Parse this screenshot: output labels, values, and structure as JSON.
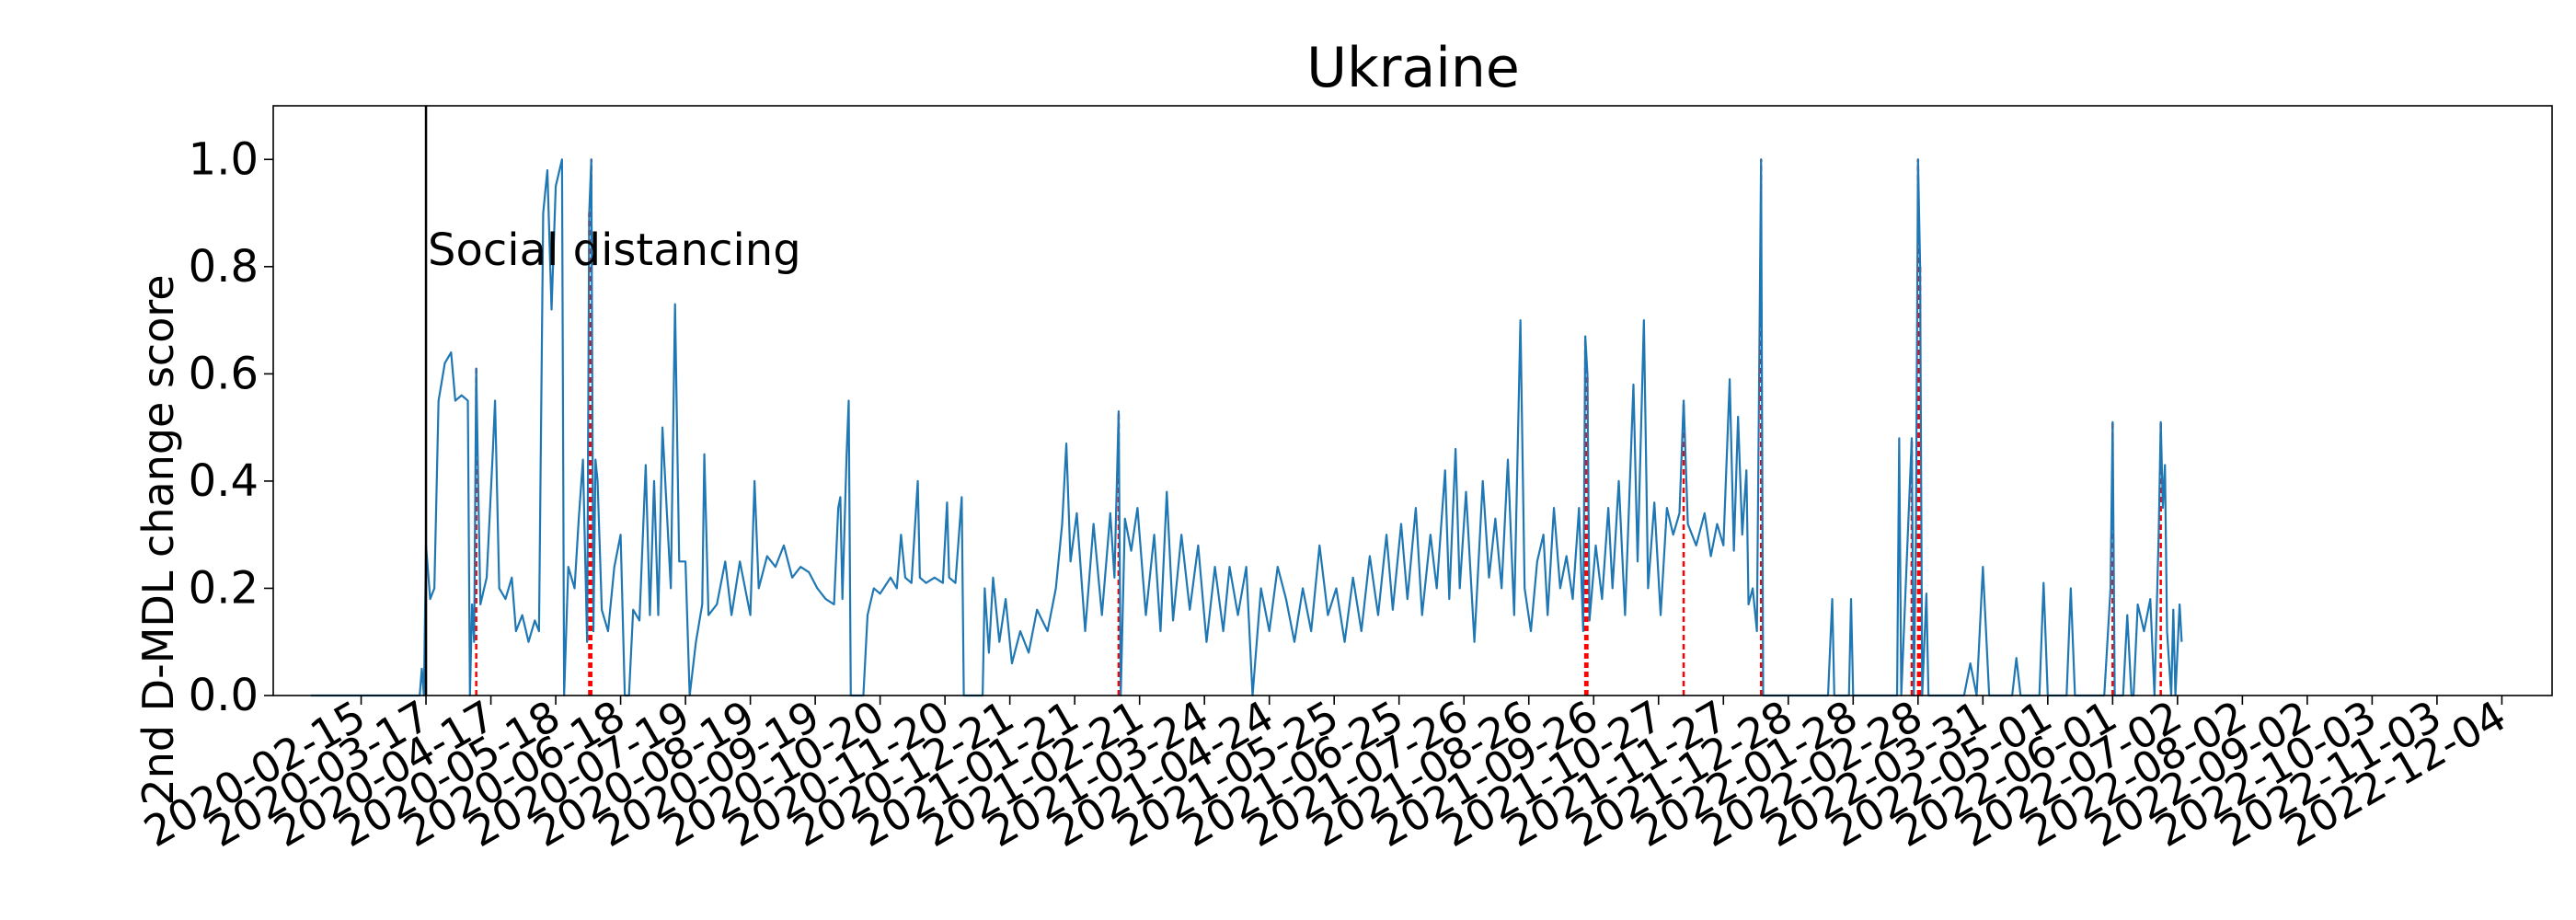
{
  "chart_data": {
    "type": "line",
    "title": "Ukraine",
    "xlabel": "",
    "ylabel": "2nd D-MDL change score",
    "x_start": "2020-01-22",
    "x_end": "2022-11-13",
    "xlim": [
      "2020-01-04",
      "2022-12-28"
    ],
    "ylim": [
      0.0,
      1.1
    ],
    "yticks": [
      0.0,
      0.2,
      0.4,
      0.6,
      0.8,
      1.0
    ],
    "ytick_labels": [
      "0.0",
      "0.2",
      "0.4",
      "0.6",
      "0.8",
      "1.0"
    ],
    "xticks": [
      "2020-02-15",
      "2020-03-17",
      "2020-04-17",
      "2020-05-18",
      "2020-06-18",
      "2020-07-19",
      "2020-08-19",
      "2020-09-19",
      "2020-10-20",
      "2020-11-20",
      "2020-12-21",
      "2021-01-21",
      "2021-02-21",
      "2021-03-24",
      "2021-04-24",
      "2021-05-25",
      "2021-06-25",
      "2021-07-26",
      "2021-08-26",
      "2021-09-26",
      "2021-10-27",
      "2021-11-27",
      "2021-12-28",
      "2022-01-28",
      "2022-02-28",
      "2022-03-31",
      "2022-05-01",
      "2022-06-01",
      "2022-07-02",
      "2022-08-02",
      "2022-09-02",
      "2022-10-03",
      "2022-11-03",
      "2022-12-04"
    ],
    "grid": false,
    "legend": false,
    "series_color": "#1f77b4",
    "alarm_color": "#ff0000",
    "event": {
      "date": "2020-03-17",
      "label": "Social distancing",
      "label_y": 0.8,
      "color": "#000000"
    },
    "alarms": [
      {
        "date": "2020-04-10",
        "value": 0.61
      },
      {
        "date": "2020-06-03",
        "value": 0.9
      },
      {
        "date": "2020-06-04",
        "value": 1.0
      },
      {
        "date": "2021-02-11",
        "value": 0.53
      },
      {
        "date": "2021-09-22",
        "value": 0.67
      },
      {
        "date": "2021-09-23",
        "value": 0.6
      },
      {
        "date": "2021-11-08",
        "value": 0.55
      },
      {
        "date": "2021-12-15",
        "value": 1.0
      },
      {
        "date": "2022-02-25",
        "value": 0.48
      },
      {
        "date": "2022-02-28",
        "value": 1.0
      },
      {
        "date": "2022-03-01",
        "value": 0.8
      },
      {
        "date": "2022-06-01",
        "value": 0.51
      },
      {
        "date": "2022-06-24",
        "value": 0.51
      }
    ],
    "anchors": [
      [
        "2020-01-22",
        0.0
      ],
      [
        "2020-03-14",
        0.0
      ],
      [
        "2020-03-15",
        0.05
      ],
      [
        "2020-03-16",
        0.0
      ],
      [
        "2020-03-17",
        0.28
      ],
      [
        "2020-03-19",
        0.18
      ],
      [
        "2020-03-21",
        0.2
      ],
      [
        "2020-03-23",
        0.55
      ],
      [
        "2020-03-26",
        0.62
      ],
      [
        "2020-03-29",
        0.64
      ],
      [
        "2020-03-31",
        0.55
      ],
      [
        "2020-04-03",
        0.56
      ],
      [
        "2020-04-06",
        0.55
      ],
      [
        "2020-04-07",
        0.0
      ],
      [
        "2020-04-08",
        0.17
      ],
      [
        "2020-04-09",
        0.1
      ],
      [
        "2020-04-10",
        0.61
      ],
      [
        "2020-04-11",
        0.38
      ],
      [
        "2020-04-12",
        0.17
      ],
      [
        "2020-04-15",
        0.22
      ],
      [
        "2020-04-18",
        0.46
      ],
      [
        "2020-04-19",
        0.55
      ],
      [
        "2020-04-21",
        0.2
      ],
      [
        "2020-04-24",
        0.18
      ],
      [
        "2020-04-27",
        0.22
      ],
      [
        "2020-04-29",
        0.12
      ],
      [
        "2020-05-02",
        0.15
      ],
      [
        "2020-05-05",
        0.1
      ],
      [
        "2020-05-08",
        0.14
      ],
      [
        "2020-05-10",
        0.12
      ],
      [
        "2020-05-12",
        0.9
      ],
      [
        "2020-05-14",
        0.98
      ],
      [
        "2020-05-16",
        0.72
      ],
      [
        "2020-05-18",
        0.95
      ],
      [
        "2020-05-21",
        1.0
      ],
      [
        "2020-05-22",
        0.0
      ],
      [
        "2020-05-24",
        0.24
      ],
      [
        "2020-05-27",
        0.2
      ],
      [
        "2020-05-29",
        0.33
      ],
      [
        "2020-05-31",
        0.44
      ],
      [
        "2020-06-02",
        0.1
      ],
      [
        "2020-06-03",
        0.9
      ],
      [
        "2020-06-04",
        1.0
      ],
      [
        "2020-06-05",
        0.12
      ],
      [
        "2020-06-06",
        0.44
      ],
      [
        "2020-06-07",
        0.4
      ],
      [
        "2020-06-09",
        0.16
      ],
      [
        "2020-06-12",
        0.12
      ],
      [
        "2020-06-15",
        0.24
      ],
      [
        "2020-06-18",
        0.3
      ],
      [
        "2020-06-20",
        0.0
      ],
      [
        "2020-06-22",
        0.0
      ],
      [
        "2020-06-24",
        0.16
      ],
      [
        "2020-06-27",
        0.14
      ],
      [
        "2020-06-30",
        0.43
      ],
      [
        "2020-07-02",
        0.15
      ],
      [
        "2020-07-04",
        0.4
      ],
      [
        "2020-07-06",
        0.15
      ],
      [
        "2020-07-08",
        0.5
      ],
      [
        "2020-07-10",
        0.35
      ],
      [
        "2020-07-12",
        0.2
      ],
      [
        "2020-07-14",
        0.73
      ],
      [
        "2020-07-16",
        0.25
      ],
      [
        "2020-07-19",
        0.25
      ],
      [
        "2020-07-21",
        0.0
      ],
      [
        "2020-07-24",
        0.1
      ],
      [
        "2020-07-27",
        0.17
      ],
      [
        "2020-07-28",
        0.45
      ],
      [
        "2020-07-30",
        0.15
      ],
      [
        "2020-08-03",
        0.17
      ],
      [
        "2020-08-07",
        0.25
      ],
      [
        "2020-08-10",
        0.15
      ],
      [
        "2020-08-14",
        0.25
      ],
      [
        "2020-08-19",
        0.15
      ],
      [
        "2020-08-21",
        0.4
      ],
      [
        "2020-08-23",
        0.2
      ],
      [
        "2020-08-27",
        0.26
      ],
      [
        "2020-08-31",
        0.24
      ],
      [
        "2020-09-04",
        0.28
      ],
      [
        "2020-09-08",
        0.22
      ],
      [
        "2020-09-12",
        0.24
      ],
      [
        "2020-09-16",
        0.23
      ],
      [
        "2020-09-20",
        0.2
      ],
      [
        "2020-09-24",
        0.18
      ],
      [
        "2020-09-28",
        0.17
      ],
      [
        "2020-09-30",
        0.35
      ],
      [
        "2020-10-01",
        0.37
      ],
      [
        "2020-10-02",
        0.18
      ],
      [
        "2020-10-04",
        0.45
      ],
      [
        "2020-10-05",
        0.55
      ],
      [
        "2020-10-06",
        0.0
      ],
      [
        "2020-10-12",
        0.0
      ],
      [
        "2020-10-14",
        0.15
      ],
      [
        "2020-10-17",
        0.2
      ],
      [
        "2020-10-20",
        0.19
      ],
      [
        "2020-10-25",
        0.22
      ],
      [
        "2020-10-28",
        0.2
      ],
      [
        "2020-10-30",
        0.3
      ],
      [
        "2020-11-01",
        0.22
      ],
      [
        "2020-11-04",
        0.21
      ],
      [
        "2020-11-07",
        0.4
      ],
      [
        "2020-11-08",
        0.22
      ],
      [
        "2020-11-11",
        0.21
      ],
      [
        "2020-11-15",
        0.22
      ],
      [
        "2020-11-19",
        0.21
      ],
      [
        "2020-11-21",
        0.36
      ],
      [
        "2020-11-22",
        0.22
      ],
      [
        "2020-11-25",
        0.21
      ],
      [
        "2020-11-28",
        0.37
      ],
      [
        "2020-11-29",
        0.0
      ],
      [
        "2020-12-08",
        0.0
      ],
      [
        "2020-12-09",
        0.2
      ],
      [
        "2020-12-11",
        0.08
      ],
      [
        "2020-12-13",
        0.22
      ],
      [
        "2020-12-16",
        0.1
      ],
      [
        "2020-12-19",
        0.18
      ],
      [
        "2020-12-22",
        0.06
      ],
      [
        "2020-12-26",
        0.12
      ],
      [
        "2020-12-30",
        0.08
      ],
      [
        "2021-01-03",
        0.16
      ],
      [
        "2021-01-08",
        0.12
      ],
      [
        "2021-01-12",
        0.2
      ],
      [
        "2021-01-15",
        0.32
      ],
      [
        "2021-01-17",
        0.47
      ],
      [
        "2021-01-19",
        0.25
      ],
      [
        "2021-01-22",
        0.34
      ],
      [
        "2021-01-26",
        0.12
      ],
      [
        "2021-01-30",
        0.32
      ],
      [
        "2021-02-03",
        0.15
      ],
      [
        "2021-02-07",
        0.34
      ],
      [
        "2021-02-09",
        0.22
      ],
      [
        "2021-02-11",
        0.53
      ],
      [
        "2021-02-12",
        0.0
      ],
      [
        "2021-02-14",
        0.33
      ],
      [
        "2021-02-17",
        0.27
      ],
      [
        "2021-02-20",
        0.35
      ],
      [
        "2021-02-24",
        0.15
      ],
      [
        "2021-02-28",
        0.3
      ],
      [
        "2021-03-03",
        0.12
      ],
      [
        "2021-03-06",
        0.38
      ],
      [
        "2021-03-09",
        0.14
      ],
      [
        "2021-03-13",
        0.3
      ],
      [
        "2021-03-17",
        0.16
      ],
      [
        "2021-03-21",
        0.28
      ],
      [
        "2021-03-25",
        0.1
      ],
      [
        "2021-03-29",
        0.24
      ],
      [
        "2021-04-02",
        0.12
      ],
      [
        "2021-04-05",
        0.24
      ],
      [
        "2021-04-09",
        0.15
      ],
      [
        "2021-04-13",
        0.24
      ],
      [
        "2021-04-16",
        0.0
      ],
      [
        "2021-04-20",
        0.2
      ],
      [
        "2021-04-24",
        0.12
      ],
      [
        "2021-04-28",
        0.24
      ],
      [
        "2021-05-02",
        0.18
      ],
      [
        "2021-05-06",
        0.1
      ],
      [
        "2021-05-10",
        0.2
      ],
      [
        "2021-05-14",
        0.12
      ],
      [
        "2021-05-18",
        0.28
      ],
      [
        "2021-05-22",
        0.15
      ],
      [
        "2021-05-26",
        0.2
      ],
      [
        "2021-05-30",
        0.1
      ],
      [
        "2021-06-03",
        0.22
      ],
      [
        "2021-06-07",
        0.12
      ],
      [
        "2021-06-11",
        0.26
      ],
      [
        "2021-06-15",
        0.15
      ],
      [
        "2021-06-19",
        0.3
      ],
      [
        "2021-06-22",
        0.16
      ],
      [
        "2021-06-26",
        0.32
      ],
      [
        "2021-06-29",
        0.18
      ],
      [
        "2021-07-03",
        0.35
      ],
      [
        "2021-07-06",
        0.15
      ],
      [
        "2021-07-10",
        0.3
      ],
      [
        "2021-07-13",
        0.2
      ],
      [
        "2021-07-17",
        0.42
      ],
      [
        "2021-07-19",
        0.18
      ],
      [
        "2021-07-22",
        0.46
      ],
      [
        "2021-07-24",
        0.2
      ],
      [
        "2021-07-27",
        0.38
      ],
      [
        "2021-07-31",
        0.1
      ],
      [
        "2021-08-04",
        0.4
      ],
      [
        "2021-08-07",
        0.22
      ],
      [
        "2021-08-10",
        0.33
      ],
      [
        "2021-08-13",
        0.2
      ],
      [
        "2021-08-16",
        0.44
      ],
      [
        "2021-08-19",
        0.15
      ],
      [
        "2021-08-22",
        0.7
      ],
      [
        "2021-08-24",
        0.2
      ],
      [
        "2021-08-27",
        0.12
      ],
      [
        "2021-08-30",
        0.25
      ],
      [
        "2021-09-02",
        0.3
      ],
      [
        "2021-09-04",
        0.15
      ],
      [
        "2021-09-07",
        0.35
      ],
      [
        "2021-09-10",
        0.2
      ],
      [
        "2021-09-13",
        0.26
      ],
      [
        "2021-09-16",
        0.18
      ],
      [
        "2021-09-19",
        0.35
      ],
      [
        "2021-09-21",
        0.12
      ],
      [
        "2021-09-22",
        0.67
      ],
      [
        "2021-09-23",
        0.6
      ],
      [
        "2021-09-24",
        0.14
      ],
      [
        "2021-09-27",
        0.28
      ],
      [
        "2021-09-30",
        0.18
      ],
      [
        "2021-10-03",
        0.35
      ],
      [
        "2021-10-05",
        0.2
      ],
      [
        "2021-10-08",
        0.4
      ],
      [
        "2021-10-11",
        0.15
      ],
      [
        "2021-10-15",
        0.58
      ],
      [
        "2021-10-17",
        0.25
      ],
      [
        "2021-10-20",
        0.7
      ],
      [
        "2021-10-22",
        0.2
      ],
      [
        "2021-10-25",
        0.36
      ],
      [
        "2021-10-28",
        0.15
      ],
      [
        "2021-10-31",
        0.35
      ],
      [
        "2021-11-03",
        0.3
      ],
      [
        "2021-11-06",
        0.34
      ],
      [
        "2021-11-08",
        0.55
      ],
      [
        "2021-11-10",
        0.32
      ],
      [
        "2021-11-14",
        0.28
      ],
      [
        "2021-11-18",
        0.34
      ],
      [
        "2021-11-21",
        0.26
      ],
      [
        "2021-11-24",
        0.32
      ],
      [
        "2021-11-27",
        0.28
      ],
      [
        "2021-11-30",
        0.59
      ],
      [
        "2021-12-02",
        0.27
      ],
      [
        "2021-12-04",
        0.52
      ],
      [
        "2021-12-06",
        0.3
      ],
      [
        "2021-12-08",
        0.42
      ],
      [
        "2021-12-09",
        0.17
      ],
      [
        "2021-12-11",
        0.2
      ],
      [
        "2021-12-13",
        0.12
      ],
      [
        "2021-12-15",
        1.0
      ],
      [
        "2021-12-16",
        0.0
      ],
      [
        "2022-01-16",
        0.0
      ],
      [
        "2022-01-18",
        0.18
      ],
      [
        "2022-01-19",
        0.0
      ],
      [
        "2022-01-26",
        0.0
      ],
      [
        "2022-01-27",
        0.18
      ],
      [
        "2022-01-28",
        0.0
      ],
      [
        "2022-02-18",
        0.0
      ],
      [
        "2022-02-19",
        0.48
      ],
      [
        "2022-02-20",
        0.0
      ],
      [
        "2022-02-25",
        0.48
      ],
      [
        "2022-02-26",
        0.0
      ],
      [
        "2022-02-27",
        0.3
      ],
      [
        "2022-02-28",
        1.0
      ],
      [
        "2022-03-01",
        0.8
      ],
      [
        "2022-03-02",
        0.0
      ],
      [
        "2022-03-04",
        0.19
      ],
      [
        "2022-03-05",
        0.0
      ],
      [
        "2022-03-22",
        0.0
      ],
      [
        "2022-03-25",
        0.06
      ],
      [
        "2022-03-28",
        0.0
      ],
      [
        "2022-03-31",
        0.24
      ],
      [
        "2022-04-03",
        0.0
      ],
      [
        "2022-04-14",
        0.0
      ],
      [
        "2022-04-16",
        0.07
      ],
      [
        "2022-04-18",
        0.0
      ],
      [
        "2022-04-27",
        0.0
      ],
      [
        "2022-04-29",
        0.21
      ],
      [
        "2022-05-01",
        0.0
      ],
      [
        "2022-05-10",
        0.0
      ],
      [
        "2022-05-12",
        0.2
      ],
      [
        "2022-05-14",
        0.0
      ],
      [
        "2022-05-28",
        0.0
      ],
      [
        "2022-05-31",
        0.2
      ],
      [
        "2022-06-01",
        0.51
      ],
      [
        "2022-06-02",
        0.0
      ],
      [
        "2022-06-06",
        0.0
      ],
      [
        "2022-06-08",
        0.15
      ],
      [
        "2022-06-10",
        0.0
      ],
      [
        "2022-06-11",
        0.0
      ],
      [
        "2022-06-13",
        0.17
      ],
      [
        "2022-06-16",
        0.12
      ],
      [
        "2022-06-19",
        0.18
      ],
      [
        "2022-06-21",
        0.0
      ],
      [
        "2022-06-23",
        0.3
      ],
      [
        "2022-06-24",
        0.51
      ],
      [
        "2022-06-25",
        0.35
      ],
      [
        "2022-06-26",
        0.43
      ],
      [
        "2022-06-27",
        0.12
      ],
      [
        "2022-06-29",
        0.0
      ],
      [
        "2022-06-30",
        0.16
      ],
      [
        "2022-07-01",
        0.0
      ],
      [
        "2022-07-03",
        0.17
      ],
      [
        "2022-07-04",
        0.1
      ]
    ]
  }
}
